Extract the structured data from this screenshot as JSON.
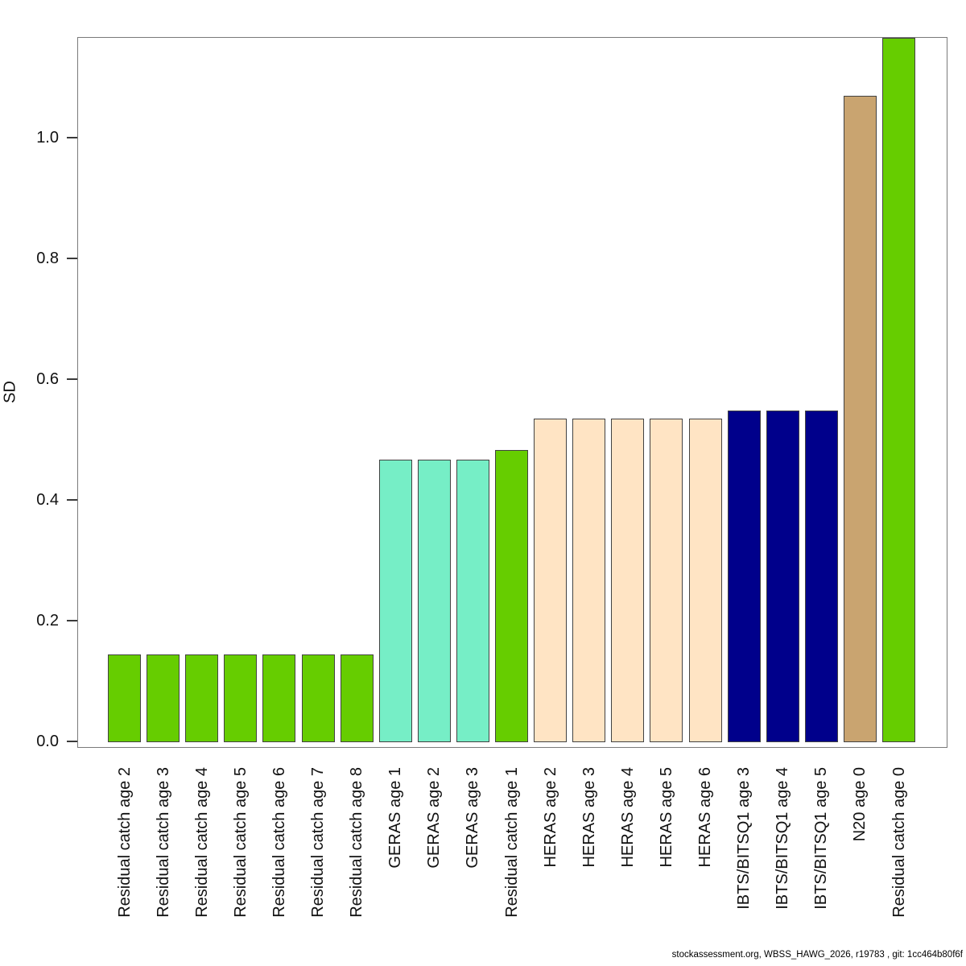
{
  "page": {
    "background_color": "#ffffff"
  },
  "footer": {
    "text": "stockassessment.org, WBSS_HAWG_2026, r19783 , git: 1cc464b80f6f"
  },
  "chart_data": {
    "type": "bar",
    "title": "",
    "xlabel": "",
    "ylabel": "SD",
    "ylim": [
      0,
      1.17
    ],
    "grid": false,
    "legend": "none",
    "ytick_labels": [
      "0.0",
      "0.2",
      "0.4",
      "0.6",
      "0.8",
      "1.0"
    ],
    "ytick_values": [
      0.0,
      0.2,
      0.4,
      0.6,
      0.8,
      1.0
    ],
    "categories": [
      "Residual catch age 2",
      "Residual catch age 3",
      "Residual catch age 4",
      "Residual catch age 5",
      "Residual catch age 6",
      "Residual catch age 7",
      "Residual catch age 8",
      "GERAS age 1",
      "GERAS age 2",
      "GERAS age 3",
      "Residual catch age 1",
      "HERAS age 2",
      "HERAS age 3",
      "HERAS age 4",
      "HERAS age 5",
      "HERAS age 6",
      "IBTS/BITSQ1 age 3",
      "IBTS/BITSQ1 age 4",
      "IBTS/BITSQ1 age 5",
      "N20 age 0",
      "Residual catch age 0"
    ],
    "values": [
      0.144,
      0.144,
      0.144,
      0.144,
      0.144,
      0.144,
      0.144,
      0.467,
      0.467,
      0.467,
      0.483,
      0.535,
      0.535,
      0.535,
      0.535,
      0.535,
      0.548,
      0.548,
      0.548,
      1.07,
      1.166
    ],
    "bar_colors": [
      "#66CD00",
      "#66CD00",
      "#66CD00",
      "#66CD00",
      "#66CD00",
      "#66CD00",
      "#66CD00",
      "#76EEC6",
      "#76EEC6",
      "#76EEC6",
      "#66CD00",
      "#FFE4C4",
      "#FFE4C4",
      "#FFE4C4",
      "#FFE4C4",
      "#FFE4C4",
      "#00008B",
      "#00008B",
      "#00008B",
      "#C9A470",
      "#66CD00"
    ],
    "style_colors": {
      "fleet_green": "#66CD00",
      "fleet_aquamarine": "#76EEC6",
      "fleet_bisque": "#FFE4C4",
      "fleet_navy": "#00008B",
      "fleet_tan": "#C9A470",
      "bar_border": "#424242",
      "axis_color": "#3a3a3a",
      "box_color": "#7a7a7a"
    }
  }
}
